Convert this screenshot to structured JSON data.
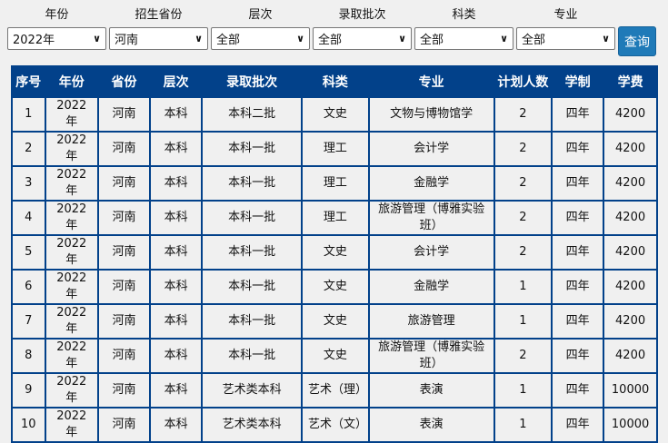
{
  "filters": [
    {
      "label": "年份",
      "value": "2022年"
    },
    {
      "label": "招生省份",
      "value": "河南"
    },
    {
      "label": "层次",
      "value": "全部"
    },
    {
      "label": "录取批次",
      "value": "全部"
    },
    {
      "label": "科类",
      "value": "全部"
    },
    {
      "label": "专业",
      "value": "全部"
    }
  ],
  "query_label": "查询",
  "table": {
    "headers": [
      "序号",
      "年份",
      "省份",
      "层次",
      "录取批次",
      "科类",
      "专业",
      "计划人数",
      "学制",
      "学费"
    ],
    "rows": [
      [
        "1",
        "2022年",
        "河南",
        "本科",
        "本科二批",
        "文史",
        "文物与博物馆学",
        "2",
        "四年",
        "4200"
      ],
      [
        "2",
        "2022年",
        "河南",
        "本科",
        "本科一批",
        "理工",
        "会计学",
        "2",
        "四年",
        "4200"
      ],
      [
        "3",
        "2022年",
        "河南",
        "本科",
        "本科一批",
        "理工",
        "金融学",
        "2",
        "四年",
        "4200"
      ],
      [
        "4",
        "2022年",
        "河南",
        "本科",
        "本科一批",
        "理工",
        "旅游管理（博雅实验班）",
        "2",
        "四年",
        "4200"
      ],
      [
        "5",
        "2022年",
        "河南",
        "本科",
        "本科一批",
        "文史",
        "会计学",
        "2",
        "四年",
        "4200"
      ],
      [
        "6",
        "2022年",
        "河南",
        "本科",
        "本科一批",
        "文史",
        "金融学",
        "1",
        "四年",
        "4200"
      ],
      [
        "7",
        "2022年",
        "河南",
        "本科",
        "本科一批",
        "文史",
        "旅游管理",
        "1",
        "四年",
        "4200"
      ],
      [
        "8",
        "2022年",
        "河南",
        "本科",
        "本科一批",
        "文史",
        "旅游管理（博雅实验班）",
        "2",
        "四年",
        "4200"
      ],
      [
        "9",
        "2022年",
        "河南",
        "本科",
        "艺术类本科",
        "艺术（理）",
        "表演",
        "1",
        "四年",
        "10000"
      ],
      [
        "10",
        "2022年",
        "河南",
        "本科",
        "艺术类本科",
        "艺术（文）",
        "表演",
        "1",
        "四年",
        "10000"
      ]
    ]
  }
}
